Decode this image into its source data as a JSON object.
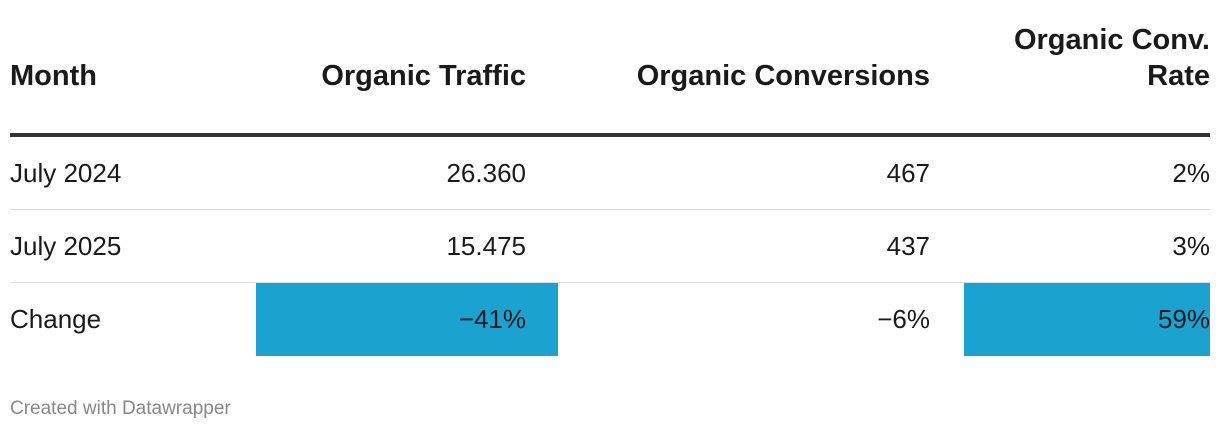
{
  "chart_data": {
    "type": "table",
    "columns": [
      "Month",
      "Organic Traffic",
      "Organic Conversions",
      "Organic Conv.\nRate"
    ],
    "rows": [
      {
        "month": "July 2024",
        "organic_traffic": "26.360",
        "organic_conversions": "467",
        "organic_conv_rate": "2%"
      },
      {
        "month": "July 2025",
        "organic_traffic": "15.475",
        "organic_conversions": "437",
        "organic_conv_rate": "3%"
      },
      {
        "month": "Change",
        "organic_traffic": "−41%",
        "organic_conversions": "−6%",
        "organic_conv_rate": "59%"
      }
    ],
    "highlighted_cells": [
      "rows.2.organic_traffic",
      "rows.2.organic_conv_rate"
    ],
    "highlight_color": "#1aa2d0"
  },
  "footer": {
    "credit": "Created with Datawrapper"
  },
  "colors": {
    "header_rule": "#333333",
    "row_divider": "#dddddd",
    "text": "#1a1a1a",
    "footer_text": "#888888"
  }
}
